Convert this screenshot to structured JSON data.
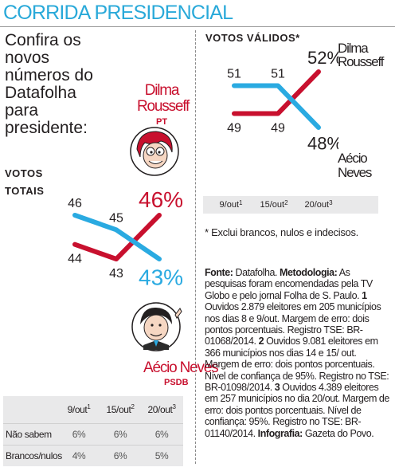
{
  "title": "CORRIDA PRESIDENCIAL",
  "subtitle_lines": [
    "Confira os",
    "novos",
    "números do",
    "Datafolha",
    "para",
    "presidente:"
  ],
  "colors": {
    "dilma": "#c8102e",
    "aecio": "#2aaae1",
    "title": "#29a9d9",
    "table_bg": "#e9e9ea"
  },
  "candidates": {
    "dilma": {
      "name_line1": "Dilma",
      "name_line2": "Rousseff",
      "party": "PT",
      "portrait_icon": "dilma-caricature-icon"
    },
    "aecio": {
      "name": "Aécio Neves",
      "party": "PSDB",
      "portrait_icon": "aecio-caricature-icon"
    }
  },
  "totais": {
    "label_line1": "VOTOS",
    "label_line2": "TOTAIS"
  },
  "validos": {
    "label": "VOTOS VÁLIDOS*",
    "dilma_name_line1": "Dilma",
    "dilma_name_line2": "Rousseff",
    "aecio_name_line1": "Aécio",
    "aecio_name_line2": "Neves"
  },
  "chart_data": [
    {
      "type": "line",
      "title": "VOTOS TOTAIS",
      "x": [
        "9/out",
        "15/out",
        "20/out"
      ],
      "series": [
        {
          "name": "Dilma Rousseff",
          "values": [
            44,
            43,
            46
          ],
          "color": "#c8102e"
        },
        {
          "name": "Aécio Neves",
          "values": [
            46,
            45,
            43
          ],
          "color": "#2aaae1"
        }
      ],
      "unit": "%"
    },
    {
      "type": "line",
      "title": "VOTOS VÁLIDOS*",
      "x": [
        "9/out",
        "15/out",
        "20/out"
      ],
      "series": [
        {
          "name": "Dilma Rousseff",
          "values": [
            49,
            49,
            52
          ],
          "color": "#c8102e"
        },
        {
          "name": "Aécio Neves",
          "values": [
            51,
            51,
            48
          ],
          "color": "#2aaae1"
        }
      ],
      "unit": "%"
    }
  ],
  "dates": {
    "d1": "9/out",
    "s1": "1",
    "d2": "15/out",
    "s2": "2",
    "d3": "20/out",
    "s3": "3"
  },
  "table": {
    "rows": [
      {
        "label": "Não sabem",
        "values": [
          "6%",
          "6%",
          "6%"
        ]
      },
      {
        "label": "Brancos/nulos",
        "values": [
          "4%",
          "6%",
          "5%"
        ]
      }
    ]
  },
  "footnote": "* Exclui brancos, nulos e indecisos.",
  "notes": {
    "fonte_label": "Fonte:",
    "fonte": " Datafolha. ",
    "metodologia_label": "Metodologia:",
    "metodologia": " As pesquisas foram encomendadas pela TV Globo e pelo jornal Folha de S. Paulo. ",
    "n1": "1",
    "t1": " Ouvidos 2.879 eleitores em 205 municípios nos dias 8 e 9/out. Margem de erro: dois pontos porcentuais. Registro TSE: BR-01068/2014. ",
    "n2": "2",
    "t2": " Ouvidos 9.081 eleitores em 366 municípios nos dias 14 e 15/ out. Margem de erro: dois pontos porcentuais. Nível de confiança de 95%. Registro no TSE: BR-01098/2014. ",
    "n3": "3",
    "t3": " Ouvidos 4.389 eleitores em 257 municípios no dia 20/out. Margem de erro: dois pontos porcentuais. Nível de confiança: 95%. Registro no TSE: BR-01140/2014. ",
    "infografia_label": "Infografia:",
    "infografia": " Gazeta do Povo."
  }
}
